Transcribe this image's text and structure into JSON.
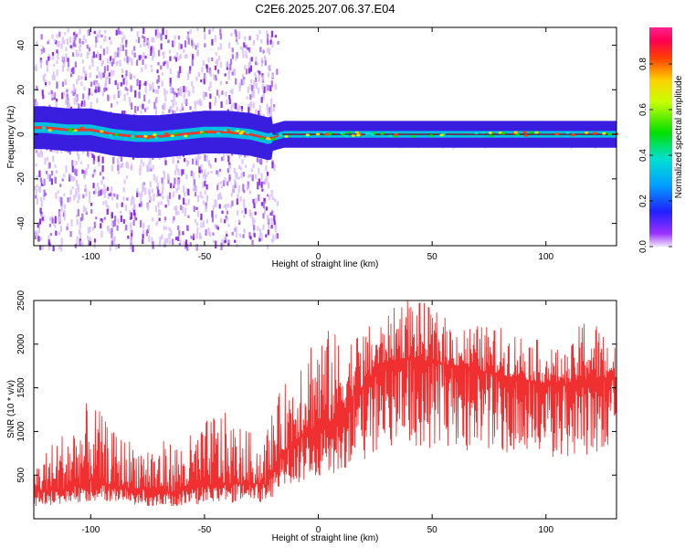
{
  "figure_title": "C2E6.2025.207.06.37.E04",
  "colors": {
    "line": "#f03030",
    "spectral_band": "#e53935",
    "scatter": "#8a2be2",
    "frame": "#000000"
  },
  "chart_data": [
    {
      "type": "heatmap",
      "title": "C2E6.2025.207.06.37.E04",
      "xlabel": "Height of straight line (km)",
      "ylabel": "Frequency (Hz)",
      "xlim": [
        -125,
        131
      ],
      "ylim": [
        -50,
        48
      ],
      "x_ticks": [
        -100,
        -50,
        0,
        50,
        100
      ],
      "y_ticks": [
        -40,
        -20,
        0,
        20,
        40
      ],
      "grid": false,
      "colorbar": {
        "label": "Normalized spectral amplitude",
        "range": [
          0,
          0.96
        ],
        "ticks": [
          0.0,
          0.2,
          0.4,
          0.6,
          0.8
        ],
        "colormap": "hsv-rainbow (violet at 0, blue, cyan, green, yellow, orange, red, magenta at max)"
      },
      "description_points": {
        "band_center_hz": [
          [
            -120,
            3
          ],
          [
            -110,
            2
          ],
          [
            -100,
            2
          ],
          [
            -90,
            0
          ],
          [
            -80,
            -1
          ],
          [
            -70,
            -1
          ],
          [
            -60,
            0
          ],
          [
            -50,
            1
          ],
          [
            -40,
            1
          ],
          [
            -30,
            0
          ],
          [
            -22,
            -2
          ],
          [
            -15,
            0
          ],
          [
            0,
            0
          ],
          [
            50,
            0
          ],
          [
            100,
            0
          ],
          [
            131,
            0
          ]
        ],
        "noise_region_km": [
          -125,
          -20
        ]
      }
    },
    {
      "type": "line",
      "xlabel": "Height of straight line (km)",
      "ylabel": "SNR (10 * v/v)",
      "xlim": [
        -125,
        131
      ],
      "ylim": [
        0,
        2500
      ],
      "x_ticks": [
        -100,
        -50,
        0,
        50,
        100
      ],
      "y_ticks": [
        500,
        1000,
        1500,
        2000,
        2500
      ],
      "grid": false,
      "series": [
        {
          "color": "#f03030",
          "envelope_mean": [
            [
              -125,
              300
            ],
            [
              -110,
              350
            ],
            [
              -100,
              450
            ],
            [
              -90,
              380
            ],
            [
              -80,
              350
            ],
            [
              -70,
              300
            ],
            [
              -60,
              320
            ],
            [
              -50,
              380
            ],
            [
              -40,
              400
            ],
            [
              -30,
              400
            ],
            [
              -22,
              400
            ],
            [
              -18,
              700
            ],
            [
              -10,
              900
            ],
            [
              -5,
              1000
            ],
            [
              0,
              1050
            ],
            [
              5,
              1100
            ],
            [
              10,
              1200
            ],
            [
              15,
              1400
            ],
            [
              20,
              1500
            ],
            [
              25,
              1700
            ],
            [
              30,
              1800
            ],
            [
              40,
              1850
            ],
            [
              50,
              1800
            ],
            [
              60,
              1750
            ],
            [
              70,
              1700
            ],
            [
              80,
              1650
            ],
            [
              90,
              1600
            ],
            [
              100,
              1550
            ],
            [
              110,
              1550
            ],
            [
              120,
              1600
            ],
            [
              131,
              1600
            ]
          ],
          "envelope_peak": [
            [
              -125,
              650
            ],
            [
              -100,
              1380
            ],
            [
              -90,
              1000
            ],
            [
              -80,
              900
            ],
            [
              -60,
              900
            ],
            [
              -50,
              1100
            ],
            [
              -45,
              1300
            ],
            [
              -35,
              1100
            ],
            [
              -25,
              900
            ],
            [
              -20,
              1300
            ],
            [
              -10,
              1800
            ],
            [
              -8,
              2100
            ],
            [
              0,
              2250
            ],
            [
              10,
              2100
            ],
            [
              20,
              2200
            ],
            [
              30,
              2300
            ],
            [
              38,
              2600
            ],
            [
              45,
              2500
            ],
            [
              60,
              2250
            ],
            [
              80,
              2200
            ],
            [
              90,
              2150
            ],
            [
              100,
              2000
            ],
            [
              110,
              1900
            ],
            [
              118,
              2450
            ],
            [
              131,
              1950
            ]
          ]
        }
      ]
    }
  ]
}
